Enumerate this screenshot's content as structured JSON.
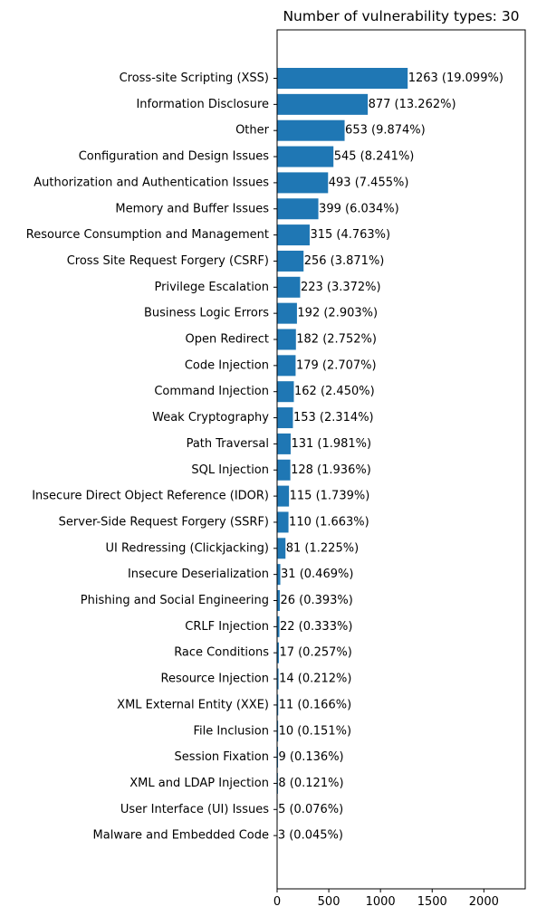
{
  "chart_data": {
    "type": "bar",
    "orientation": "horizontal",
    "title": "Number of vulnerability types: 30",
    "xlabel": "",
    "ylabel": "",
    "xlim": [
      0,
      2400
    ],
    "x_ticks": [
      0,
      500,
      1000,
      1500,
      2000
    ],
    "grid": false,
    "bar_color": "#1f77b4",
    "categories": [
      "Cross-site Scripting (XSS)",
      "Information Disclosure",
      "Other",
      "Configuration and Design Issues",
      "Authorization and Authentication Issues",
      "Memory and Buffer Issues",
      "Resource Consumption and Management",
      "Cross Site Request Forgery (CSRF)",
      "Privilege Escalation",
      "Business Logic Errors",
      "Open Redirect",
      "Code Injection",
      "Command Injection",
      "Weak Cryptography",
      "Path Traversal",
      "SQL Injection",
      "Insecure Direct Object Reference (IDOR)",
      "Server-Side Request Forgery (SSRF)",
      "UI Redressing (Clickjacking)",
      "Insecure Deserialization",
      "Phishing and Social Engineering",
      "CRLF Injection",
      "Race Conditions",
      "Resource Injection",
      "XML External Entity (XXE)",
      "File Inclusion",
      "Session Fixation",
      "XML and LDAP Injection",
      "User Interface (UI) Issues",
      "Malware and Embedded Code"
    ],
    "values": [
      1263,
      877,
      653,
      545,
      493,
      399,
      315,
      256,
      223,
      192,
      182,
      179,
      162,
      153,
      131,
      128,
      115,
      110,
      81,
      31,
      26,
      22,
      17,
      14,
      11,
      10,
      9,
      8,
      5,
      3
    ],
    "value_labels": [
      "1263 (19.099%)",
      "877 (13.262%)",
      "653 (9.874%)",
      "545 (8.241%)",
      "493 (7.455%)",
      "399 (6.034%)",
      "315 (4.763%)",
      "256 (3.871%)",
      "223 (3.372%)",
      "192 (2.903%)",
      "182 (2.752%)",
      "179 (2.707%)",
      "162 (2.450%)",
      "153 (2.314%)",
      "131 (1.981%)",
      "128 (1.936%)",
      "115 (1.739%)",
      "110 (1.663%)",
      "81 (1.225%)",
      "31 (0.469%)",
      "26 (0.393%)",
      "22 (0.333%)",
      "17 (0.257%)",
      "14 (0.212%)",
      "11 (0.166%)",
      "10 (0.151%)",
      "9 (0.136%)",
      "8 (0.121%)",
      "5 (0.076%)",
      "3 (0.045%)"
    ]
  }
}
